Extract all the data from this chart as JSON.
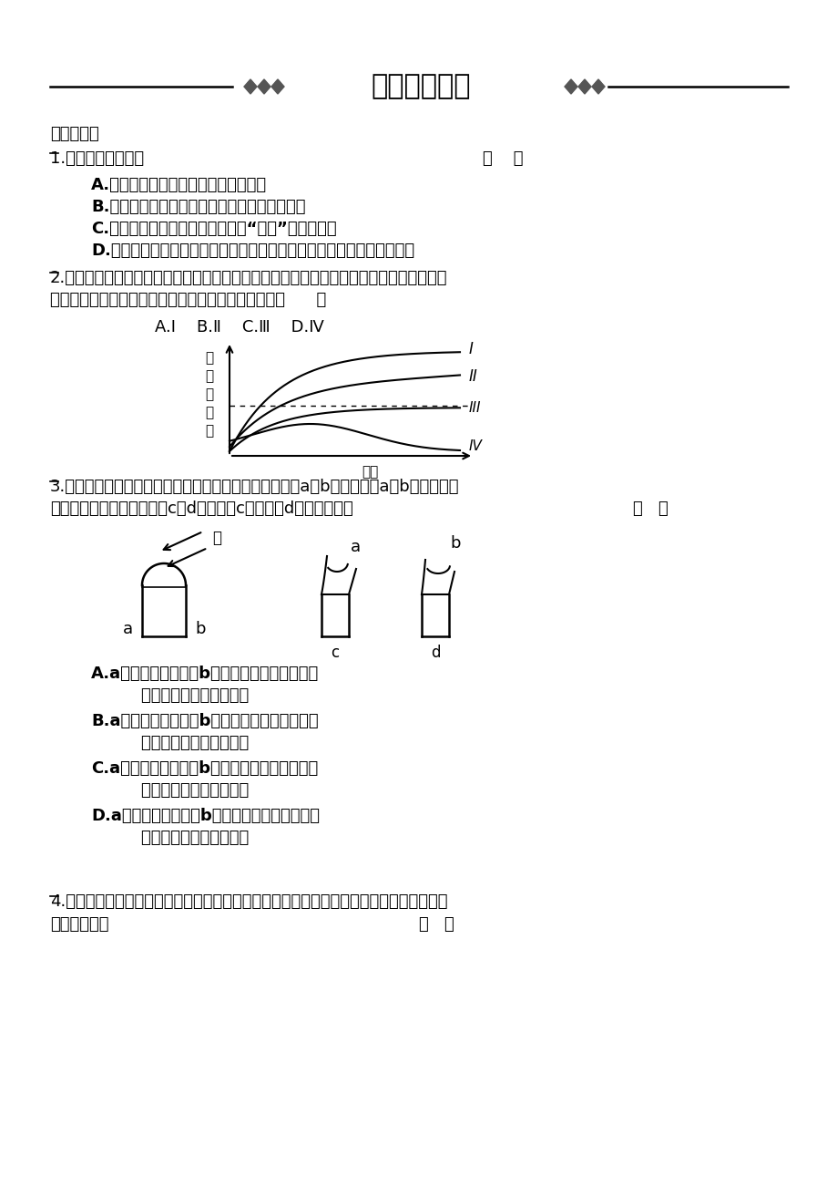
{
  "bg_color": "#ffffff",
  "title_text": "考点过关检测",
  "section1": "一、选择题",
  "q1_stem": "1.下列说法正确的是",
  "q1_bracket": "（    ）",
  "q1_A": "A.植物生命活动的调节只进行激素调节",
  "q1_B": "B.植物向光性、顶端优势能体现生长素的两重性",
  "q1_C": "C.用生长素处理得到无子番茄，此“无子”性状能遗传",
  "q1_D": "D.把插条基部在浓度较高的生长素类似物溶液中蓮一下，可促进插条生根",
  "q2_stem1": "2.将一盆栽植物横放于地上，则其水平方向的茎的近地一侧生长素浓度变化曲线为（图中虚",
  "q2_stem2": "线表示对茎的生长既不促进也不抑制的生长素浓度）（      ）",
  "q2_options": "A.Ⅰ    B.Ⅱ    C.Ⅲ    D.Ⅳ",
  "q3_stem1": "3.如图所示，将燕麦胚芽鞘的尖端用单侧光照射后，分成a、b两部分，将a、b两部分分别",
  "q3_stem2": "放在切去尖端的燕麦胚芽鞘c、d上，结果c生长快于d。该现象说明",
  "q3_bracket": "（   ）",
  "q3_A1": "A.a侧生长素浓度大于b侧，该浓度生长素对燕麦",
  "q3_A2": "    胚芽鞘的生长有抑制作用",
  "q3_B1": "B.a侧生长素浓度大于b侧，该浓度生长素对燕麦",
  "q3_B2": "    胚芽鞘的生长有促进作用",
  "q3_C1": "C.a侧生长素浓度小于b侧，该浓度生长素对燕麦",
  "q3_C2": "    胚芽鞘的生长有促进作用",
  "q3_D1": "D.a侧生长素浓度小于b侧，该浓度生长素对燕麦",
  "q3_D2": "    胚芽鞘的生长有抑制作用",
  "q4_stem1": "4.下图中甲为对燕麦胚芽鞘所做的处理，静止一段时间后，乙、丙、丁三图所示胚芽鞘的生",
  "q4_stem2": "长情况依次是",
  "q4_bracket": "（   ）",
  "ylabel_chars": [
    "生",
    "长",
    "素",
    "浓",
    "度"
  ],
  "xlabel": "时间",
  "curve_labels": [
    "I",
    "II",
    "III",
    "IV"
  ],
  "light_label": "光"
}
